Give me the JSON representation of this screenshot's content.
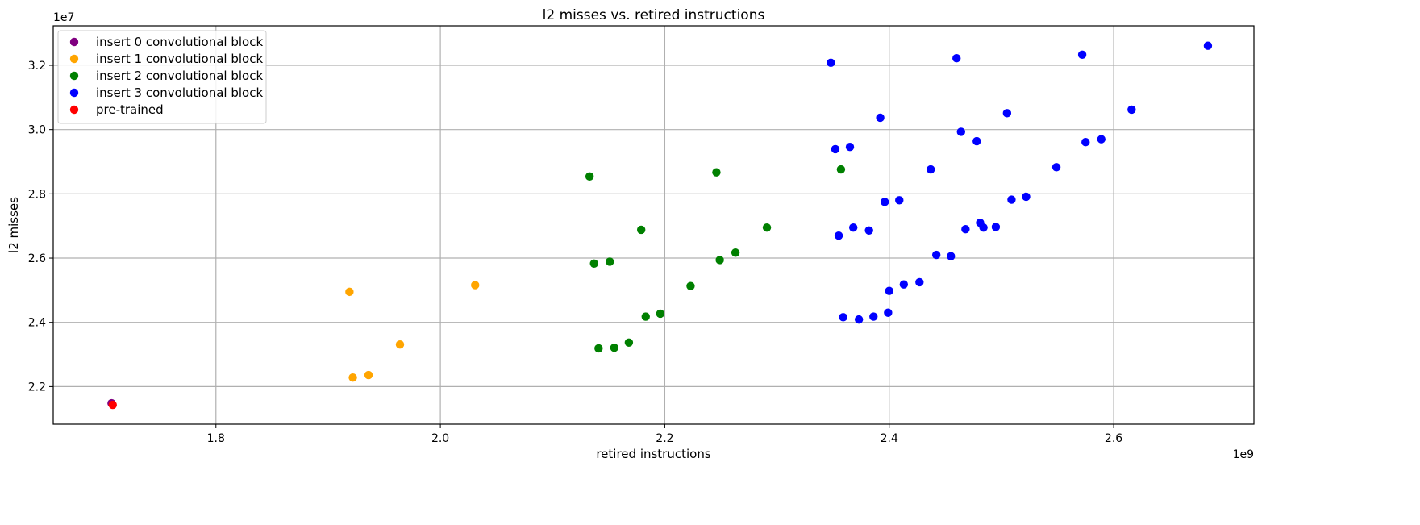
{
  "chart_data": {
    "type": "scatter",
    "title": "l2 misses vs. retired instructions",
    "xlabel": "retired instructions",
    "ylabel": "l2 misses",
    "x_scale_label": "1e9",
    "y_scale_label": "1e7",
    "xlim": [
      1.655,
      2.725
    ],
    "ylim": [
      2.083,
      3.323
    ],
    "x_ticks": [
      {
        "value": 1.8,
        "label": "1.8"
      },
      {
        "value": 2.0,
        "label": "2.0"
      },
      {
        "value": 2.2,
        "label": "2.2"
      },
      {
        "value": 2.4,
        "label": "2.4"
      },
      {
        "value": 2.6,
        "label": "2.6"
      }
    ],
    "y_ticks": [
      {
        "value": 2.2,
        "label": "2.2"
      },
      {
        "value": 2.4,
        "label": "2.4"
      },
      {
        "value": 2.6,
        "label": "2.6"
      },
      {
        "value": 2.8,
        "label": "2.8"
      },
      {
        "value": 3.0,
        "label": "3.0"
      },
      {
        "value": 3.2,
        "label": "3.2"
      }
    ],
    "grid": true,
    "legend_position": "top-left",
    "series": [
      {
        "name": "insert 0 convolutional block",
        "color": "#800080",
        "points": [
          [
            1.707,
            2.148
          ]
        ]
      },
      {
        "name": "insert 1 convolutional block",
        "color": "#FFA500",
        "points": [
          [
            1.919,
            2.495
          ],
          [
            1.922,
            2.228
          ],
          [
            1.936,
            2.236
          ],
          [
            1.964,
            2.331
          ],
          [
            2.031,
            2.516
          ]
        ]
      },
      {
        "name": "insert 2 convolutional block",
        "color": "#008000",
        "points": [
          [
            2.133,
            2.854
          ],
          [
            2.137,
            2.583
          ],
          [
            2.141,
            2.319
          ],
          [
            2.151,
            2.589
          ],
          [
            2.155,
            2.321
          ],
          [
            2.168,
            2.337
          ],
          [
            2.179,
            2.688
          ],
          [
            2.183,
            2.418
          ],
          [
            2.196,
            2.427
          ],
          [
            2.223,
            2.513
          ],
          [
            2.246,
            2.867
          ],
          [
            2.249,
            2.594
          ],
          [
            2.263,
            2.617
          ],
          [
            2.291,
            2.695
          ],
          [
            2.357,
            2.876
          ]
        ]
      },
      {
        "name": "insert 3 convolutional block",
        "color": "#0000FF",
        "points": [
          [
            2.348,
            3.208
          ],
          [
            2.352,
            2.939
          ],
          [
            2.355,
            2.67
          ],
          [
            2.359,
            2.416
          ],
          [
            2.365,
            2.946
          ],
          [
            2.368,
            2.695
          ],
          [
            2.373,
            2.409
          ],
          [
            2.382,
            2.686
          ],
          [
            2.386,
            2.418
          ],
          [
            2.392,
            3.037
          ],
          [
            2.396,
            2.775
          ],
          [
            2.399,
            2.43
          ],
          [
            2.4,
            2.498
          ],
          [
            2.409,
            2.78
          ],
          [
            2.413,
            2.518
          ],
          [
            2.427,
            2.525
          ],
          [
            2.437,
            2.876
          ],
          [
            2.442,
            2.61
          ],
          [
            2.455,
            2.606
          ],
          [
            2.46,
            3.222
          ],
          [
            2.464,
            2.993
          ],
          [
            2.468,
            2.69
          ],
          [
            2.478,
            2.964
          ],
          [
            2.481,
            2.71
          ],
          [
            2.484,
            2.695
          ],
          [
            2.495,
            2.697
          ],
          [
            2.505,
            3.051
          ],
          [
            2.509,
            2.782
          ],
          [
            2.522,
            2.791
          ],
          [
            2.549,
            2.883
          ],
          [
            2.572,
            3.233
          ],
          [
            2.575,
            2.961
          ],
          [
            2.589,
            2.97
          ],
          [
            2.616,
            3.062
          ],
          [
            2.684,
            3.261
          ]
        ]
      },
      {
        "name": "pre-trained",
        "color": "#FF0000",
        "points": [
          [
            1.708,
            2.143
          ]
        ]
      }
    ]
  }
}
